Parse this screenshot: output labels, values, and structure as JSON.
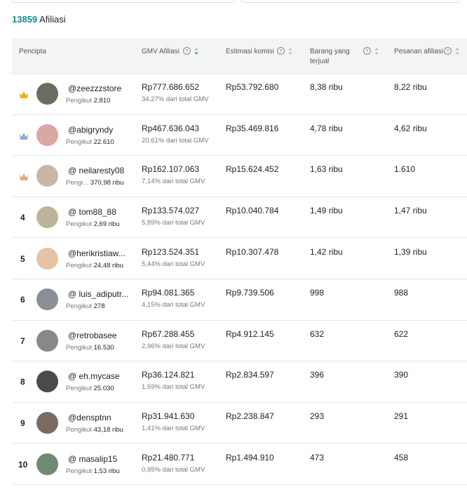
{
  "summary": {
    "count": "13859",
    "label": "Afiliasi"
  },
  "table": {
    "columns": [
      "Pencipta",
      "GMV Afiliasi",
      "Estimasi komisi",
      "Barang yang terjual",
      "Pesanan afiliasi"
    ],
    "rows": [
      {
        "handle": "@zeezzzstore",
        "follower_label": "Pengikut",
        "followers": "2.810",
        "gmv": "Rp777.686.652",
        "gmv_share": "34,27% dari total GMV",
        "commission": "Rp53.792.680",
        "sold": "8,38 ribu",
        "orders": "8,22 ribu"
      },
      {
        "handle": "@abigryndy",
        "follower_label": "Pengikut",
        "followers": "22.610",
        "gmv": "Rp467.636.043",
        "gmv_share": "20,61% dari total GMV",
        "commission": "Rp35.469.816",
        "sold": "4,78 ribu",
        "orders": "4,62 ribu"
      },
      {
        "handle": "@ neilaresty08",
        "follower_label": "Pengi...",
        "followers": "370,98 ribu",
        "gmv": "Rp162.107.063",
        "gmv_share": "7,14% dari total GMV",
        "commission": "Rp15.624.452",
        "sold": "1,63 ribu",
        "orders": "1.610"
      },
      {
        "rank": "4",
        "handle": "@ tom88_88",
        "follower_label": "Pengikut",
        "followers": "2,69 ribu",
        "gmv": "Rp133.574.027",
        "gmv_share": "5,89% dari total GMV",
        "commission": "Rp10.040.784",
        "sold": "1,49 ribu",
        "orders": "1,47 ribu"
      },
      {
        "rank": "5",
        "handle": "@herikristiaw...",
        "follower_label": "Pengikut",
        "followers": "24,48 ribu",
        "gmv": "Rp123.524.351",
        "gmv_share": "5,44% dari total GMV",
        "commission": "Rp10.307.478",
        "sold": "1,42 ribu",
        "orders": "1,39 ribu"
      },
      {
        "rank": "6",
        "handle": "@ luis_adiputr...",
        "follower_label": "Pengikut",
        "followers": "278",
        "gmv": "Rp94.081.365",
        "gmv_share": "4,15% dari total GMV",
        "commission": "Rp9.739.506",
        "sold": "998",
        "orders": "988"
      },
      {
        "rank": "7",
        "handle": "@retrobasee",
        "follower_label": "Pengikut",
        "followers": "16.530",
        "gmv": "Rp67.288.455",
        "gmv_share": "2,96% dari total GMV",
        "commission": "Rp4.912.145",
        "sold": "632",
        "orders": "622"
      },
      {
        "rank": "8",
        "handle": "@ eh.mycase",
        "follower_label": "Pengikut",
        "followers": "25.030",
        "gmv": "Rp36.124.821",
        "gmv_share": "1,59% dari total GMV",
        "commission": "Rp2.834.597",
        "sold": "396",
        "orders": "390"
      },
      {
        "rank": "9",
        "handle": "@densptnn",
        "follower_label": "Pengikut",
        "followers": "43,18 ribu",
        "gmv": "Rp31.941.630",
        "gmv_share": "1,41% dari total GMV",
        "commission": "Rp2.238.847",
        "sold": "293",
        "orders": "291"
      },
      {
        "rank": "10",
        "handle": "@ masalip15",
        "follower_label": "Pengikut",
        "followers": "1,53 ribu",
        "gmv": "Rp21.480.771",
        "gmv_share": "0,95% dari total GMV",
        "commission": "Rp1.494.910",
        "sold": "473",
        "orders": "458"
      }
    ]
  }
}
